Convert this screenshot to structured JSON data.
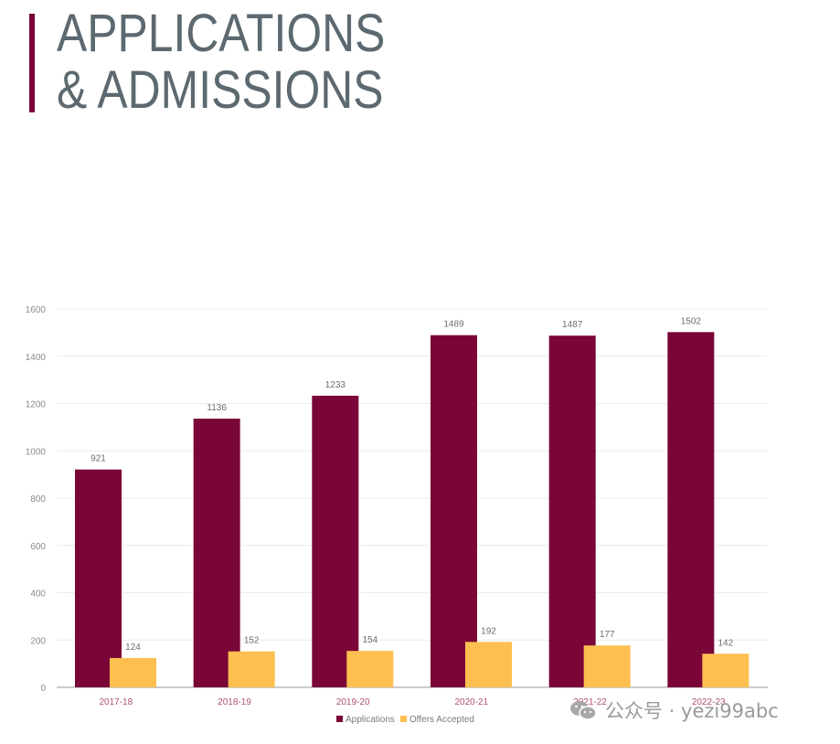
{
  "header": {
    "title_line1": "APPLICATIONS",
    "title_line2": "& ADMISSIONS"
  },
  "colors": {
    "applications": "#7a0537",
    "offers": "#fdbf4f",
    "accent_bar": "#7a0537",
    "title": "#5d6970",
    "tick": "#8a8a8a",
    "category": "#b0507a"
  },
  "chart_data": {
    "type": "bar",
    "title": "APPLICATIONS & ADMISSIONS",
    "categories": [
      "2017-18",
      "2018-19",
      "2019-20",
      "2020-21",
      "2021-22",
      "2022-23"
    ],
    "series": [
      {
        "name": "Applications",
        "values": [
          921,
          1136,
          1233,
          1489,
          1487,
          1502
        ]
      },
      {
        "name": "Offers Accepted",
        "values": [
          124,
          152,
          154,
          192,
          177,
          142
        ]
      }
    ],
    "yticks": [
      0,
      200,
      400,
      600,
      800,
      1000,
      1200,
      1400,
      1600
    ],
    "ylim": [
      0,
      1600
    ],
    "xlabel": "",
    "ylabel": "",
    "grid": true,
    "legend": "bottom-center"
  },
  "watermark": {
    "text": "公众号 · yezi99abc",
    "icon": "wechat-icon"
  }
}
